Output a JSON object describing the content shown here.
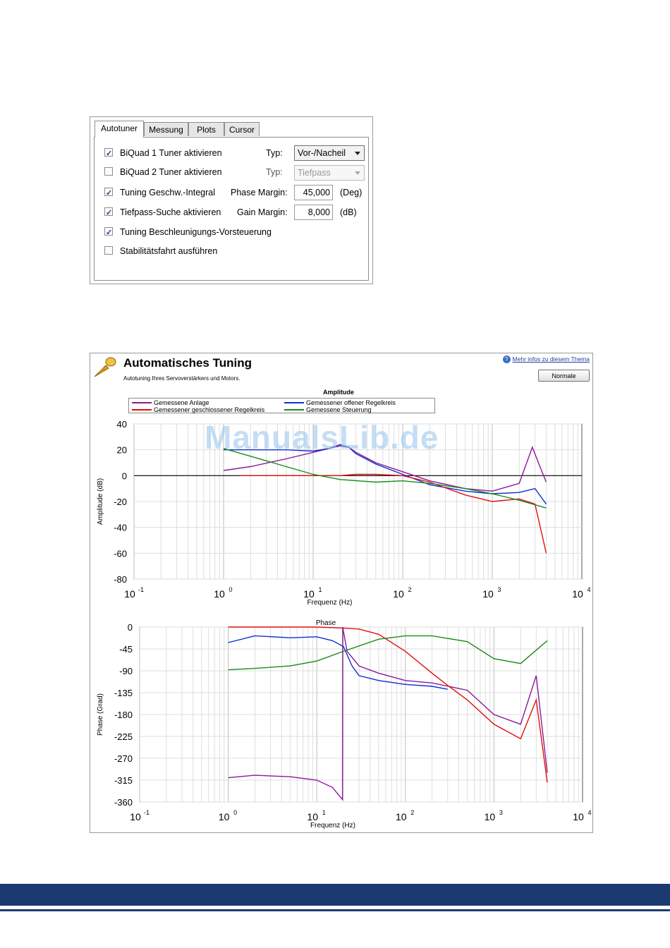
{
  "autotuner": {
    "tabs": [
      "Autotuner",
      "Messung",
      "Plots",
      "Cursor"
    ],
    "options": [
      {
        "label": "BiQuad 1 Tuner aktivieren",
        "checked": true
      },
      {
        "label": "BiQuad 2 Tuner aktivieren",
        "checked": false
      },
      {
        "label": "Tuning Geschw.-Integral",
        "checked": true
      },
      {
        "label": "Tiefpass-Suche aktivieren",
        "checked": true
      },
      {
        "label": "Tuning Beschleunigungs-Vorsteuerung",
        "checked": true
      },
      {
        "label": "Stabilitätsfahrt ausführen",
        "checked": false
      }
    ],
    "typ_label": "Typ:",
    "typ1_value": "Vor-/Nacheil",
    "typ2_value": "Tiefpass",
    "phase_margin_label": "Phase Margin:",
    "phase_margin_value": "45,000",
    "phase_margin_unit": "(Deg)",
    "gain_margin_label": "Gain Margin:",
    "gain_margin_value": "8,000",
    "gain_margin_unit": "(dB)"
  },
  "tuning": {
    "title": "Automatisches Tuning",
    "subtitle": "Autotuning Ihres Servoverstärkers und Motors.",
    "help_link": "Mehr infos zu diesem Thema",
    "mode_button": "Normale",
    "icon": "trumpet-icon"
  },
  "watermark": "ManualsLib.de",
  "chart_data": [
    {
      "type": "line",
      "title": "Amplitude",
      "xlabel": "Frequenz (Hz)",
      "ylabel": "Amplitude (dB)",
      "x_scale": "log",
      "xlim": [
        0.1,
        10000
      ],
      "ylim": [
        -80,
        40
      ],
      "yticks": [
        "40",
        "20",
        "0",
        "-20",
        "-40",
        "-60",
        "-80"
      ],
      "xticks": [
        {
          "base": "10",
          "exp": "-1"
        },
        {
          "base": "10",
          "exp": "0"
        },
        {
          "base": "10",
          "exp": "1"
        },
        {
          "base": "10",
          "exp": "2"
        },
        {
          "base": "10",
          "exp": "3"
        },
        {
          "base": "10",
          "exp": "4"
        }
      ],
      "grid": true,
      "legend_position": "top",
      "series": [
        {
          "name": "Gemessene Anlage",
          "color": "#8b1a9a",
          "x": [
            1,
            2,
            5,
            10,
            15,
            20,
            25,
            30,
            50,
            100,
            200,
            500,
            1000,
            2000,
            2800,
            3500,
            4000
          ],
          "y": [
            4,
            7,
            13,
            18,
            21,
            23,
            22,
            18,
            10,
            3,
            -4,
            -10,
            -12,
            -6,
            22,
            5,
            -5
          ]
        },
        {
          "name": "Gemessener offener Regelkreis",
          "color": "#1030d0",
          "x": [
            1,
            2,
            5,
            10,
            15,
            20,
            25,
            30,
            50,
            100,
            200,
            500,
            1000,
            2000,
            3000,
            4000
          ],
          "y": [
            20,
            20,
            20,
            19,
            21,
            24,
            22,
            17,
            9,
            1,
            -7,
            -12,
            -14,
            -13,
            -10,
            -22
          ]
        },
        {
          "name": "Gemessener geschlossener Regelkreis",
          "color": "#e01010",
          "x": [
            1.5,
            5,
            10,
            20,
            30,
            50,
            100,
            200,
            500,
            1000,
            2000,
            3000,
            4000
          ],
          "y": [
            0,
            0,
            0,
            0,
            1,
            1,
            0,
            -5,
            -15,
            -20,
            -18,
            -22,
            -60
          ]
        },
        {
          "name": "Gemessene Steuerung",
          "color": "#1a8a1a",
          "x": [
            1,
            2,
            5,
            10,
            20,
            50,
            100,
            200,
            500,
            1000,
            2000,
            4000
          ],
          "y": [
            21,
            15,
            7,
            1,
            -3,
            -5,
            -4,
            -6,
            -10,
            -14,
            -19,
            -25
          ]
        }
      ]
    },
    {
      "type": "line",
      "title": "Phase",
      "xlabel": "Frequenz (Hz)",
      "ylabel": "Phase (Grad)",
      "x_scale": "log",
      "xlim": [
        0.1,
        10000
      ],
      "ylim": [
        -360,
        0
      ],
      "yticks": [
        "0",
        "-45",
        "-90",
        "-135",
        "-180",
        "-225",
        "-270",
        "-315",
        "-360"
      ],
      "xticks": [
        {
          "base": "10",
          "exp": "-1"
        },
        {
          "base": "10",
          "exp": "0"
        },
        {
          "base": "10",
          "exp": "1"
        },
        {
          "base": "10",
          "exp": "2"
        },
        {
          "base": "10",
          "exp": "3"
        },
        {
          "base": "10",
          "exp": "4"
        }
      ],
      "grid": true,
      "series": [
        {
          "name": "Gemessene Anlage",
          "color": "#8b1a9a",
          "x": [
            1,
            2,
            5,
            10,
            15,
            19.5,
            19.6,
            22,
            30,
            50,
            100,
            200,
            500,
            1000,
            2000,
            3000,
            4000
          ],
          "y": [
            -310,
            -305,
            -308,
            -315,
            -330,
            -355,
            0,
            -50,
            -80,
            -95,
            -110,
            -115,
            -130,
            -180,
            -200,
            -100,
            -300
          ]
        },
        {
          "name": "Gemessener offener Regelkreis",
          "color": "#1030d0",
          "x": [
            1,
            2,
            5,
            10,
            15,
            20,
            25,
            30,
            50,
            100,
            200,
            300
          ],
          "y": [
            -32,
            -18,
            -22,
            -20,
            -28,
            -40,
            -80,
            -100,
            -110,
            -118,
            -122,
            -128
          ]
        },
        {
          "name": "Gemessener geschlossener Regelkreis",
          "color": "#e01010",
          "x": [
            1,
            5,
            10,
            20,
            30,
            50,
            100,
            200,
            300,
            500,
            1000,
            2000,
            3000,
            4000
          ],
          "y": [
            0,
            0,
            0,
            -2,
            -4,
            -15,
            -50,
            -95,
            -120,
            -150,
            -200,
            -230,
            -150,
            -320
          ]
        },
        {
          "name": "Gemessene Steuerung",
          "color": "#1a8a1a",
          "x": [
            1,
            2,
            5,
            10,
            20,
            50,
            100,
            200,
            500,
            1000,
            2000,
            4000
          ],
          "y": [
            -88,
            -85,
            -80,
            -70,
            -50,
            -25,
            -18,
            -18,
            -30,
            -65,
            -75,
            -28
          ]
        }
      ]
    }
  ]
}
